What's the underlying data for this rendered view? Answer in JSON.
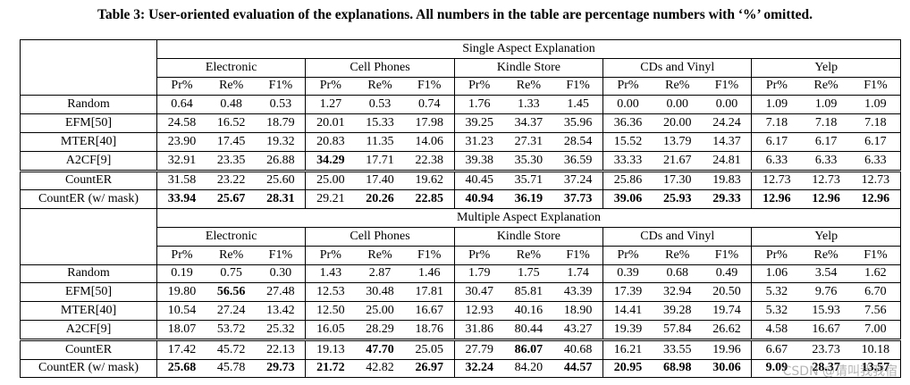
{
  "caption": "Table 3: User-oriented evaluation of the explanations. All numbers in the table are percentage numbers with ‘%’ omitted.",
  "metrics": [
    "Pr%",
    "Re%",
    "F1%"
  ],
  "datasets": [
    "Electronic",
    "Cell Phones",
    "Kindle Store",
    "CDs and Vinyl",
    "Yelp"
  ],
  "sections": [
    {
      "title": "Single Aspect Explanation",
      "rows": [
        {
          "label": "Random",
          "values": [
            "0.64",
            "0.48",
            "0.53",
            "1.27",
            "0.53",
            "0.74",
            "1.76",
            "1.33",
            "1.45",
            "0.00",
            "0.00",
            "0.00",
            "1.09",
            "1.09",
            "1.09"
          ],
          "bold": []
        },
        {
          "label": "EFM[50]",
          "values": [
            "24.58",
            "16.52",
            "18.79",
            "20.01",
            "15.33",
            "17.98",
            "39.25",
            "34.37",
            "35.96",
            "36.36",
            "20.00",
            "24.24",
            "7.18",
            "7.18",
            "7.18"
          ],
          "bold": []
        },
        {
          "label": "MTER[40]",
          "values": [
            "23.90",
            "17.45",
            "19.32",
            "20.83",
            "11.35",
            "14.06",
            "31.23",
            "27.31",
            "28.54",
            "15.52",
            "13.79",
            "14.37",
            "6.17",
            "6.17",
            "6.17"
          ],
          "bold": []
        },
        {
          "label": "A2CF[9]",
          "values": [
            "32.91",
            "23.35",
            "26.88",
            "34.29",
            "17.71",
            "22.38",
            "39.38",
            "35.30",
            "36.59",
            "33.33",
            "21.67",
            "24.81",
            "6.33",
            "6.33",
            "6.33"
          ],
          "bold": [
            3
          ]
        },
        {
          "label": "CountER",
          "values": [
            "31.58",
            "23.22",
            "25.60",
            "25.00",
            "17.40",
            "19.62",
            "40.45",
            "35.71",
            "37.24",
            "25.86",
            "17.30",
            "19.83",
            "12.73",
            "12.73",
            "12.73"
          ],
          "bold": []
        },
        {
          "label": "CountER (w/ mask)",
          "values": [
            "33.94",
            "25.67",
            "28.31",
            "29.21",
            "20.26",
            "22.85",
            "40.94",
            "36.19",
            "37.73",
            "39.06",
            "25.93",
            "29.33",
            "12.96",
            "12.96",
            "12.96"
          ],
          "bold": [
            0,
            1,
            2,
            4,
            5,
            6,
            7,
            8,
            9,
            10,
            11,
            12,
            13,
            14
          ]
        }
      ]
    },
    {
      "title": "Multiple Aspect Explanation",
      "rows": [
        {
          "label": "Random",
          "values": [
            "0.19",
            "0.75",
            "0.30",
            "1.43",
            "2.87",
            "1.46",
            "1.79",
            "1.75",
            "1.74",
            "0.39",
            "0.68",
            "0.49",
            "1.06",
            "3.54",
            "1.62"
          ],
          "bold": []
        },
        {
          "label": "EFM[50]",
          "values": [
            "19.80",
            "56.56",
            "27.48",
            "12.53",
            "30.48",
            "17.81",
            "30.47",
            "85.81",
            "43.39",
            "17.39",
            "32.94",
            "20.50",
            "5.32",
            "9.76",
            "6.70"
          ],
          "bold": [
            1
          ]
        },
        {
          "label": "MTER[40]",
          "values": [
            "10.54",
            "27.24",
            "13.42",
            "12.50",
            "25.00",
            "16.67",
            "12.93",
            "40.16",
            "18.90",
            "14.41",
            "39.28",
            "19.74",
            "5.32",
            "15.93",
            "7.56"
          ],
          "bold": []
        },
        {
          "label": "A2CF[9]",
          "values": [
            "18.07",
            "53.72",
            "25.32",
            "16.05",
            "28.29",
            "18.76",
            "31.86",
            "80.44",
            "43.27",
            "19.39",
            "57.84",
            "26.62",
            "4.58",
            "16.67",
            "7.00"
          ],
          "bold": []
        },
        {
          "label": "CountER",
          "values": [
            "17.42",
            "45.72",
            "22.13",
            "19.13",
            "47.70",
            "25.05",
            "27.79",
            "86.07",
            "40.68",
            "16.21",
            "33.55",
            "19.96",
            "6.67",
            "23.73",
            "10.18"
          ],
          "bold": [
            4,
            7
          ]
        },
        {
          "label": "CountER (w/ mask)",
          "values": [
            "25.68",
            "45.78",
            "29.73",
            "21.72",
            "42.82",
            "26.97",
            "32.24",
            "84.20",
            "44.57",
            "20.95",
            "68.98",
            "30.06",
            "9.09",
            "28.37",
            "13.57"
          ],
          "bold": [
            0,
            2,
            3,
            5,
            6,
            8,
            9,
            10,
            11,
            12,
            13,
            14
          ]
        }
      ]
    }
  ],
  "watermark": "CSDN @请叫我我宿"
}
